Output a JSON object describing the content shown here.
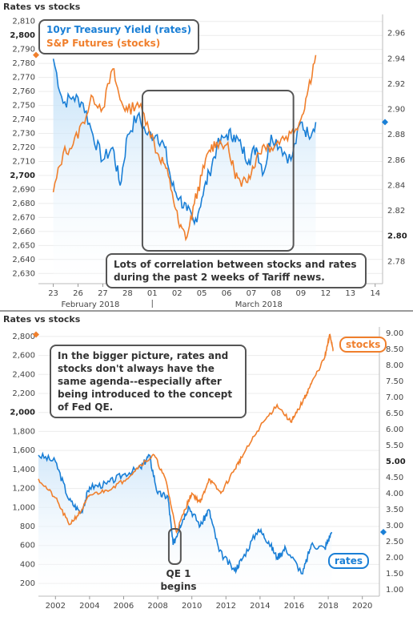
{
  "colors": {
    "rates": "#1a7fd6",
    "stocks": "#f07f2c",
    "box": "#555555"
  },
  "top": {
    "title": "Rates vs stocks",
    "legend": {
      "rates": "10yr Treasury Yield (rates)",
      "stocks": "S&P Futures (stocks)"
    },
    "annotation": "Lots of correlation between stocks and rates during the past 2 weeks of Tariff news.",
    "left_ticks": [
      "2,810",
      "2,800",
      "2,790",
      "2,780",
      "2,770",
      "2,760",
      "2,750",
      "2,740",
      "2,730",
      "2,720",
      "2,710",
      "2,700",
      "2,690",
      "2,680",
      "2,670",
      "2,660",
      "2,650",
      "2,640",
      "2,630"
    ],
    "right_ticks": [
      "2.96",
      "2.94",
      "2.92",
      "2.90",
      "2.88",
      "2.86",
      "2.84",
      "2.82",
      "2.80",
      "2.78"
    ],
    "x_ticks": [
      "23",
      "26",
      "27",
      "28",
      "01",
      "02",
      "05",
      "06",
      "07",
      "08",
      "09",
      "12",
      "13",
      "14"
    ],
    "month_labels": [
      "February 2018",
      "March 2018"
    ]
  },
  "bottom": {
    "title": "Rates vs stocks",
    "annotation": "In the bigger picture, rates and stocks don't always have the same agenda--especially after being introduced to the concept of Fed QE.",
    "stocks_tag": "stocks",
    "rates_tag": "rates",
    "qe_label": "QE 1 begins",
    "left_ticks": [
      "2,800",
      "2,600",
      "2,400",
      "2,200",
      "2,000",
      "1,800",
      "1,600",
      "1,400",
      "1,200",
      "1,000",
      "800",
      "600",
      "400",
      "200"
    ],
    "right_ticks": [
      "9.00",
      "8.50",
      "8.00",
      "7.50",
      "7.00",
      "6.50",
      "6.00",
      "5.50",
      "5.00",
      "4.50",
      "4.00",
      "3.50",
      "3.00",
      "2.50",
      "2.00",
      "1.50",
      "1.00"
    ],
    "x_ticks": [
      "2002",
      "2004",
      "2006",
      "2008",
      "2010",
      "2012",
      "2014",
      "2016",
      "2018",
      "2020"
    ]
  },
  "chart_data": [
    {
      "type": "line",
      "title": "Rates vs stocks",
      "x": [
        "23",
        "26",
        "27",
        "28",
        "01",
        "02",
        "05",
        "06",
        "07",
        "08",
        "09",
        "12",
        "13",
        "14"
      ],
      "series": [
        {
          "name": "10yr Treasury Yield (rates)",
          "axis": "right",
          "points": [
            [
              0,
              2.94
            ],
            [
              0.4,
              2.905
            ],
            [
              0.8,
              2.91
            ],
            [
              1.2,
              2.905
            ],
            [
              1.6,
              2.88
            ],
            [
              2.0,
              2.86
            ],
            [
              2.4,
              2.87
            ],
            [
              2.7,
              2.84
            ],
            [
              3.0,
              2.88
            ],
            [
              3.4,
              2.895
            ],
            [
              3.8,
              2.88
            ],
            [
              4.2,
              2.88
            ],
            [
              4.5,
              2.87
            ],
            [
              4.8,
              2.84
            ],
            [
              5.1,
              2.83
            ],
            [
              5.4,
              2.82
            ],
            [
              5.7,
              2.81
            ],
            [
              6.0,
              2.83
            ],
            [
              6.3,
              2.85
            ],
            [
              6.6,
              2.87
            ],
            [
              7.0,
              2.88
            ],
            [
              7.3,
              2.88
            ],
            [
              7.6,
              2.87
            ],
            [
              7.9,
              2.86
            ],
            [
              8.2,
              2.87
            ],
            [
              8.5,
              2.85
            ],
            [
              8.8,
              2.88
            ],
            [
              9.2,
              2.87
            ],
            [
              9.6,
              2.86
            ],
            [
              10.0,
              2.89
            ],
            [
              10.3,
              2.88
            ],
            [
              10.6,
              2.89
            ]
          ]
        },
        {
          "name": "S&P Futures (stocks)",
          "axis": "left",
          "points": [
            [
              0,
              2688
            ],
            [
              0.4,
              2716
            ],
            [
              0.8,
              2722
            ],
            [
              1.2,
              2738
            ],
            [
              1.6,
              2756
            ],
            [
              2.0,
              2748
            ],
            [
              2.4,
              2776
            ],
            [
              2.7,
              2754
            ],
            [
              3.0,
              2746
            ],
            [
              3.4,
              2752
            ],
            [
              3.8,
              2738
            ],
            [
              4.2,
              2716
            ],
            [
              4.5,
              2708
            ],
            [
              4.8,
              2688
            ],
            [
              5.1,
              2663
            ],
            [
              5.4,
              2656
            ],
            [
              5.7,
              2680
            ],
            [
              6.0,
              2700
            ],
            [
              6.3,
              2718
            ],
            [
              6.6,
              2724
            ],
            [
              7.0,
              2722
            ],
            [
              7.3,
              2704
            ],
            [
              7.6,
              2692
            ],
            [
              7.9,
              2700
            ],
            [
              8.2,
              2712
            ],
            [
              8.5,
              2722
            ],
            [
              8.8,
              2720
            ],
            [
              9.2,
              2726
            ],
            [
              9.6,
              2730
            ],
            [
              10.0,
              2740
            ],
            [
              10.3,
              2762
            ],
            [
              10.6,
              2786
            ]
          ]
        }
      ],
      "ylim_left": [
        2625,
        2815
      ],
      "ylim_right": [
        2.765,
        2.975
      ],
      "legend": "top-left"
    },
    {
      "type": "line",
      "title": "Rates vs stocks",
      "x_range": [
        2001,
        2021
      ],
      "series": [
        {
          "name": "rates",
          "axis": "right",
          "points": [
            [
              2001,
              5.2
            ],
            [
              2002,
              5.0
            ],
            [
              2002.8,
              3.8
            ],
            [
              2003.5,
              3.4
            ],
            [
              2004,
              4.2
            ],
            [
              2005,
              4.3
            ],
            [
              2006,
              4.6
            ],
            [
              2007,
              4.8
            ],
            [
              2007.5,
              5.2
            ],
            [
              2008,
              4.0
            ],
            [
              2008.6,
              3.9
            ],
            [
              2008.9,
              2.4
            ],
            [
              2009.3,
              3.0
            ],
            [
              2009.8,
              3.6
            ],
            [
              2010.5,
              3.0
            ],
            [
              2011,
              3.5
            ],
            [
              2011.6,
              2.2
            ],
            [
              2012.5,
              1.6
            ],
            [
              2013,
              2.0
            ],
            [
              2013.9,
              2.9
            ],
            [
              2014.5,
              2.5
            ],
            [
              2015,
              2.0
            ],
            [
              2015.5,
              2.3
            ],
            [
              2016.5,
              1.5
            ],
            [
              2017,
              2.4
            ],
            [
              2017.8,
              2.3
            ],
            [
              2018.2,
              2.8
            ]
          ]
        },
        {
          "name": "stocks",
          "axis": "left",
          "points": [
            [
              2001,
              1300
            ],
            [
              2002,
              1100
            ],
            [
              2002.8,
              820
            ],
            [
              2003.5,
              960
            ],
            [
              2004,
              1130
            ],
            [
              2005,
              1180
            ],
            [
              2006,
              1280
            ],
            [
              2007,
              1450
            ],
            [
              2007.8,
              1550
            ],
            [
              2008.5,
              1270
            ],
            [
              2009.1,
              740
            ],
            [
              2009.6,
              980
            ],
            [
              2010,
              1150
            ],
            [
              2010.5,
              1050
            ],
            [
              2011,
              1300
            ],
            [
              2011.7,
              1150
            ],
            [
              2012.5,
              1400
            ],
            [
              2013,
              1550
            ],
            [
              2014,
              1850
            ],
            [
              2015,
              2080
            ],
            [
              2015.8,
              1900
            ],
            [
              2016,
              1950
            ],
            [
              2016.6,
              2150
            ],
            [
              2017,
              2300
            ],
            [
              2017.8,
              2580
            ],
            [
              2018.1,
              2820
            ],
            [
              2018.3,
              2650
            ]
          ]
        }
      ],
      "ylim_left": [
        100,
        2900
      ],
      "ylim_right": [
        0.9,
        9.2
      ],
      "legend": "labels"
    }
  ]
}
